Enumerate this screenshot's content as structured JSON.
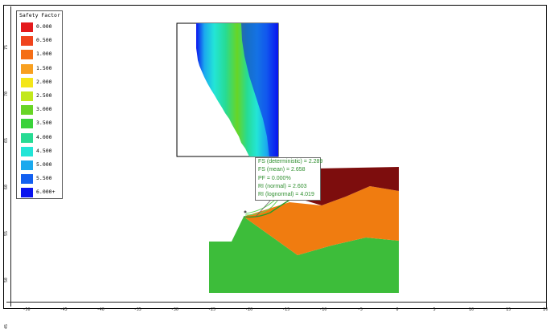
{
  "legend": {
    "title": "Safety Factor",
    "items": [
      {
        "label": "0.000",
        "color": "#e41a1c"
      },
      {
        "label": "0.500",
        "color": "#f0441d"
      },
      {
        "label": "1.000",
        "color": "#f56e16"
      },
      {
        "label": "1.500",
        "color": "#f8a020"
      },
      {
        "label": "2.000",
        "color": "#f4e619"
      },
      {
        "label": "2.500",
        "color": "#c2e81c"
      },
      {
        "label": "3.000",
        "color": "#68d526"
      },
      {
        "label": "3.500",
        "color": "#3ad23a"
      },
      {
        "label": "4.000",
        "color": "#27db93"
      },
      {
        "label": "4.500",
        "color": "#23e5d7"
      },
      {
        "label": "5.000",
        "color": "#1ba9ee"
      },
      {
        "label": "5.500",
        "color": "#1360f0"
      },
      {
        "label": "6.000+",
        "color": "#0a14ef"
      }
    ]
  },
  "info_box": {
    "lines": [
      "FS (deterministic) = 2.289",
      "FS (mean) = 2.658",
      "PF = 0.000%",
      "RI (normal) = 2.603",
      "RI (lognormal) = 4.019"
    ]
  },
  "x_axis": {
    "ticks": [
      "-50",
      "-45",
      "-40",
      "-35",
      "-30",
      "-25",
      "-20",
      "-15",
      "-10",
      "-5",
      "0",
      "5",
      "10",
      "15",
      "20"
    ]
  },
  "y_axis": {
    "ticks": [
      "75",
      "70",
      "65",
      "60",
      "55",
      "50",
      "45"
    ]
  },
  "materials": {
    "top_layer": "#7d0d0d",
    "middle_layer": "#f07c10",
    "bottom_layer": "#3dbd3a"
  }
}
